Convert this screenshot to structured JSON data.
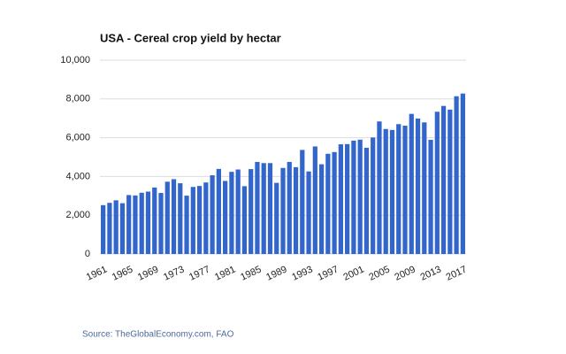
{
  "chart_data": {
    "type": "bar",
    "title": "USA - Cereal crop yield by hectar",
    "categories": [
      "1961",
      null,
      null,
      null,
      "1965",
      null,
      null,
      null,
      "1969",
      null,
      null,
      null,
      "1973",
      null,
      null,
      null,
      "1977",
      null,
      null,
      null,
      "1981",
      null,
      null,
      null,
      "1985",
      null,
      null,
      null,
      "1989",
      null,
      null,
      null,
      "1993",
      null,
      null,
      null,
      "1997",
      null,
      null,
      null,
      "2001",
      null,
      null,
      null,
      "2005",
      null,
      null,
      null,
      "2009",
      null,
      null,
      null,
      "2013",
      null,
      null,
      null,
      "2017"
    ],
    "values": [
      2520,
      2640,
      2770,
      2620,
      3040,
      3020,
      3160,
      3220,
      3430,
      3150,
      3730,
      3860,
      3650,
      3010,
      3460,
      3510,
      3690,
      4060,
      4390,
      3770,
      4240,
      4360,
      3500,
      4380,
      4750,
      4690,
      4690,
      3670,
      4440,
      4750,
      4480,
      5370,
      4260,
      5550,
      4630,
      5170,
      5260,
      5660,
      5670,
      5850,
      5900,
      5480,
      6010,
      6840,
      6450,
      6400,
      6700,
      6620,
      7230,
      6990,
      6790,
      5890,
      7340,
      7640,
      7450,
      8140,
      8280
    ],
    "color": "#3366cc",
    "ylim": [
      0,
      10000
    ],
    "yticks": [
      0,
      {
        "value": 2000,
        "label": "2,000"
      },
      {
        "value": 4000,
        "label": "4,000"
      },
      {
        "value": 6000,
        "label": "6,000"
      },
      {
        "value": 8000,
        "label": "8,000"
      },
      {
        "value": 10000,
        "label": "10,000"
      }
    ],
    "grid": true,
    "source": "Source: TheGlobalEconomy.com, FAO"
  }
}
